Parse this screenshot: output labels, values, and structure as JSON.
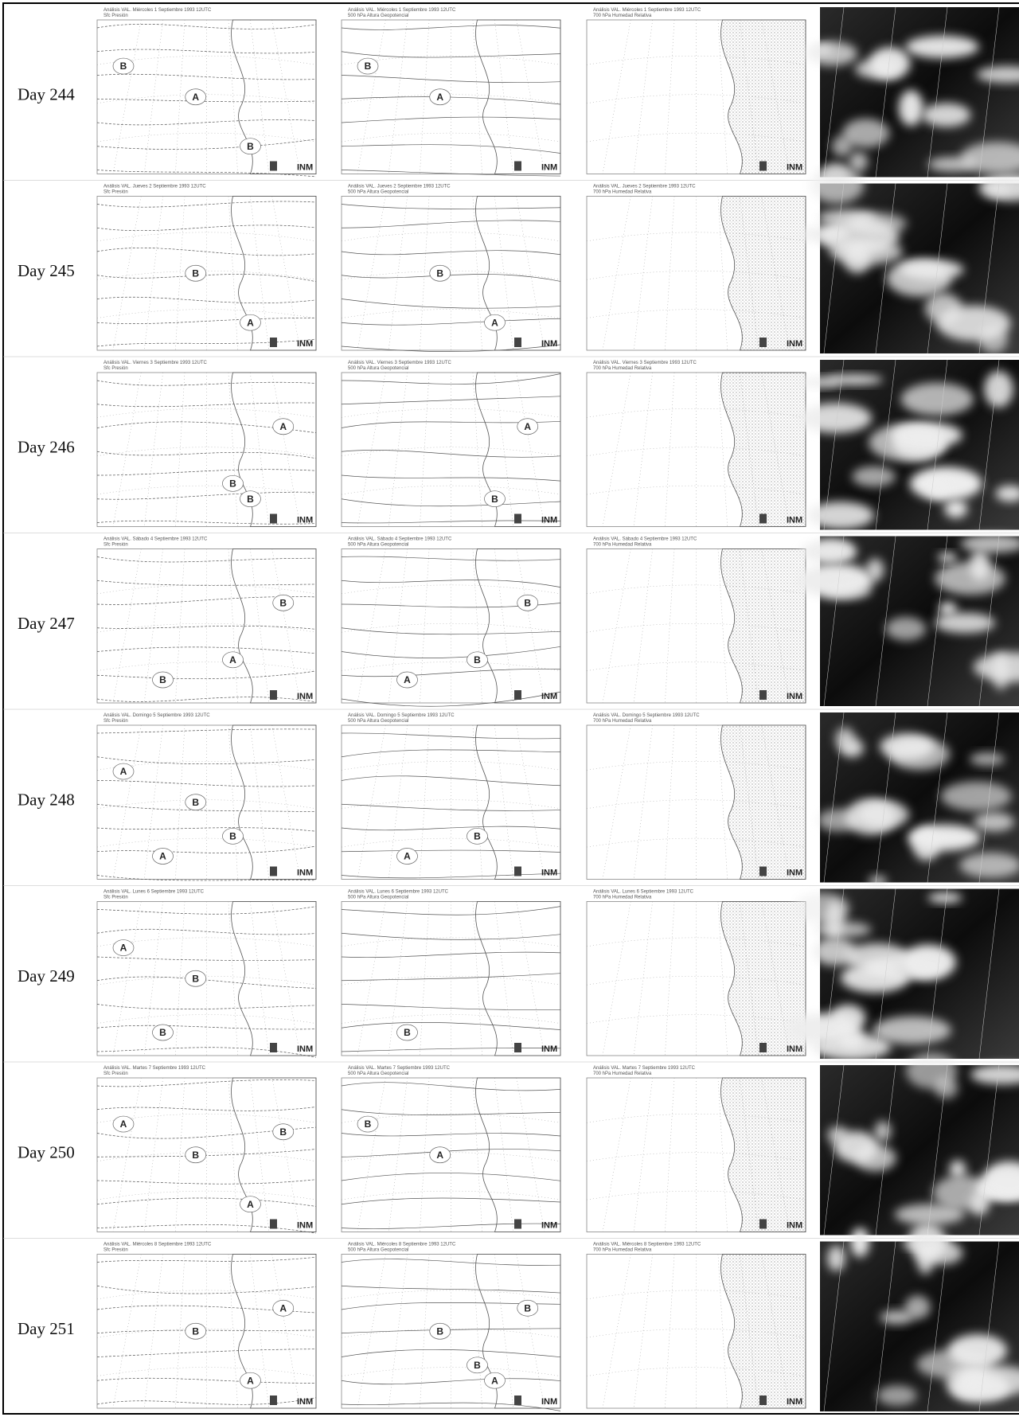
{
  "panel_subtitles": [
    "Sfc Presión",
    "500 hPa Altura Geopotencial",
    "700 hPa Humedad Relativa"
  ],
  "logo": "INM",
  "rows": [
    {
      "label": "Day 244",
      "maps": [
        {
          "title": "Análisis VAL. Miércoles 1 Septiembre 1993 12UTC",
          "centers": [
            "B",
            "A",
            "B"
          ]
        },
        {
          "title": "Análisis VAL. Miércoles 1 Septiembre 1993 12UTC",
          "centers": [
            "B",
            "A"
          ]
        },
        {
          "title": "Análisis VAL. Miércoles 1 Septiembre 1993 12UTC",
          "centers": []
        }
      ]
    },
    {
      "label": "Day 245",
      "maps": [
        {
          "title": "Análisis VAL. Jueves 2 Septiembre 1993 12UTC",
          "centers": [
            "B",
            "A"
          ]
        },
        {
          "title": "Análisis VAL. Jueves 2 Septiembre 1993 12UTC",
          "centers": [
            "B",
            "A"
          ]
        },
        {
          "title": "Análisis VAL. Jueves 2 Septiembre 1993 12UTC",
          "centers": []
        }
      ]
    },
    {
      "label": "Day 246",
      "maps": [
        {
          "title": "Análisis VAL. Viernes 3 Septiembre 1993 12UTC",
          "centers": [
            "B",
            "A",
            "B"
          ]
        },
        {
          "title": "Análisis VAL. Viernes 3 Septiembre 1993 12UTC",
          "centers": [
            "B",
            "A"
          ]
        },
        {
          "title": "Análisis VAL. Viernes 3 Septiembre 1993 12UTC",
          "centers": []
        }
      ]
    },
    {
      "label": "Day 247",
      "maps": [
        {
          "title": "Análisis VAL. Sábado 4 Septiembre 1993 12UTC",
          "centers": [
            "B",
            "A",
            "B"
          ]
        },
        {
          "title": "Análisis VAL. Sábado 4 Septiembre 1993 12UTC",
          "centers": [
            "B",
            "B",
            "A"
          ]
        },
        {
          "title": "Análisis VAL. Sábado 4 Septiembre 1993 12UTC",
          "centers": []
        }
      ]
    },
    {
      "label": "Day 248",
      "maps": [
        {
          "title": "Análisis VAL. Domingo 5 Septiembre 1993 12UTC",
          "centers": [
            "B",
            "A",
            "A",
            "B"
          ]
        },
        {
          "title": "Análisis VAL. Domingo 5 Septiembre 1993 12UTC",
          "centers": [
            "B",
            "A"
          ]
        },
        {
          "title": "Análisis VAL. Domingo 5 Septiembre 1993 12UTC",
          "centers": []
        }
      ]
    },
    {
      "label": "Day 249",
      "maps": [
        {
          "title": "Análisis VAL. Lunes 6 Septiembre 1993 12UTC",
          "centers": [
            "B",
            "A",
            "B"
          ]
        },
        {
          "title": "Análisis VAL. Lunes 6 Septiembre 1993 12UTC",
          "centers": [
            "B"
          ]
        },
        {
          "title": "Análisis VAL. Lunes 6 Septiembre 1993 12UTC",
          "centers": []
        }
      ]
    },
    {
      "label": "Day 250",
      "maps": [
        {
          "title": "Análisis VAL. Martes 7 Septiembre 1993 12UTC",
          "centers": [
            "A",
            "B",
            "A",
            "B"
          ]
        },
        {
          "title": "Análisis VAL. Martes 7 Septiembre 1993 12UTC",
          "centers": [
            "B",
            "A"
          ]
        },
        {
          "title": "Análisis VAL. Martes 7 Septiembre 1993 12UTC",
          "centers": []
        }
      ]
    },
    {
      "label": "Day 251",
      "maps": [
        {
          "title": "Análisis VAL. Miércoles 8 Septiembre 1993 12UTC",
          "centers": [
            "B",
            "A",
            "A"
          ]
        },
        {
          "title": "Análisis VAL. Miércoles 8 Septiembre 1993 12UTC",
          "centers": [
            "B",
            "A",
            "B",
            "B"
          ]
        },
        {
          "title": "Análisis VAL. Miércoles 8 Septiembre 1993 12UTC",
          "centers": []
        }
      ]
    }
  ]
}
